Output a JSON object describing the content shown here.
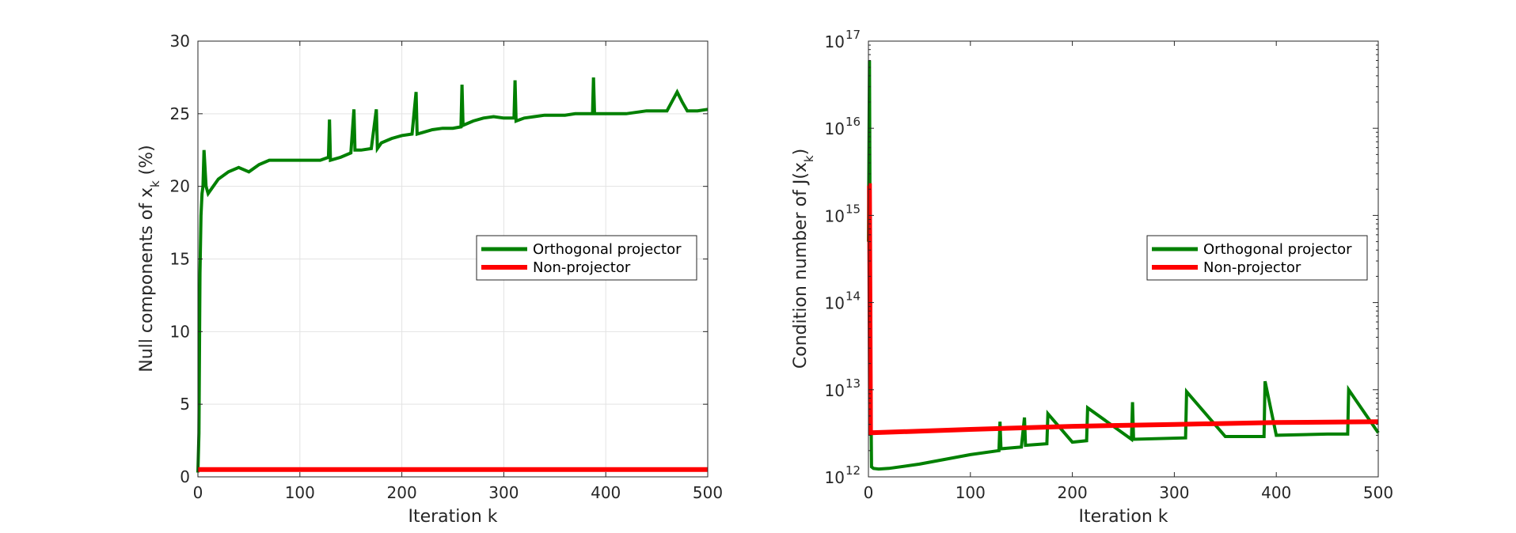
{
  "chart_data": [
    {
      "type": "line",
      "xlabel": "Iteration k",
      "ylabel_main": "Null components of x",
      "ylabel_sub": "k",
      "ylabel_tail": " (%)",
      "xlim": [
        0,
        500
      ],
      "ylim": [
        0,
        30
      ],
      "xticks": [
        "0",
        "100",
        "200",
        "300",
        "400",
        "500"
      ],
      "yticks": [
        "0",
        "5",
        "10",
        "15",
        "20",
        "25",
        "30"
      ],
      "grid": true,
      "legend_position": "right",
      "series": [
        {
          "name": "Orthogonal projector",
          "color": "#008000",
          "x": [
            0,
            1,
            2,
            3,
            4,
            5,
            6,
            8,
            10,
            15,
            20,
            30,
            40,
            50,
            60,
            70,
            80,
            90,
            100,
            110,
            120,
            128,
            129,
            130,
            140,
            150,
            153,
            154,
            160,
            170,
            175,
            176,
            180,
            190,
            200,
            210,
            214,
            215,
            220,
            230,
            240,
            250,
            258,
            259,
            260,
            270,
            280,
            290,
            300,
            310,
            311,
            312,
            320,
            330,
            340,
            350,
            360,
            370,
            380,
            387,
            388,
            389,
            400,
            420,
            440,
            460,
            470,
            475,
            480,
            490,
            500
          ],
          "values": [
            0.3,
            3,
            14,
            18,
            19.5,
            20,
            22.5,
            20,
            19.5,
            20,
            20.5,
            21,
            21.3,
            21,
            21.5,
            21.8,
            21.8,
            21.8,
            21.8,
            21.8,
            21.8,
            22,
            24.6,
            21.8,
            22,
            22.3,
            25.3,
            22.5,
            22.5,
            22.6,
            25.3,
            22.6,
            23,
            23.3,
            23.5,
            23.6,
            26.5,
            23.6,
            23.7,
            23.9,
            24,
            24,
            24.1,
            27,
            24.2,
            24.5,
            24.7,
            24.8,
            24.7,
            24.7,
            27.3,
            24.5,
            24.7,
            24.8,
            24.9,
            24.9,
            24.9,
            25,
            25,
            25,
            27.5,
            25,
            25,
            25,
            25.2,
            25.2,
            26.5,
            25.8,
            25.2,
            25.2,
            25.3
          ]
        },
        {
          "name": "Non-projector",
          "color": "#ff0000",
          "x": [
            0,
            500
          ],
          "values": [
            0.5,
            0.5
          ]
        }
      ]
    },
    {
      "type": "line",
      "y_scale": "log",
      "xlabel": "Iteration k",
      "ylabel_main": "Condition number of J(x",
      "ylabel_sub": "k",
      "ylabel_tail": ")",
      "xlim": [
        0,
        500
      ],
      "ylim": [
        1000000000000.0,
        1e+17
      ],
      "xticks": [
        "0",
        "100",
        "200",
        "300",
        "400",
        "500"
      ],
      "ytick_exponents": [
        "12",
        "13",
        "14",
        "15",
        "16",
        "17"
      ],
      "ytick_base": "10",
      "grid": false,
      "legend_position": "right",
      "series": [
        {
          "name": "Orthogonal projector",
          "color": "#008000",
          "x": [
            0,
            1,
            2,
            3,
            5,
            10,
            20,
            50,
            100,
            128,
            129,
            130,
            150,
            153,
            154,
            175,
            176,
            200,
            214,
            215,
            258,
            259,
            260,
            311,
            312,
            350,
            388,
            389,
            400,
            450,
            470,
            471,
            500
          ],
          "values": [
            500000000000000.0,
            6e+16,
            30000000000000.0,
            1300000000000.0,
            1250000000000.0,
            1230000000000.0,
            1250000000000.0,
            1400000000000.0,
            1800000000000.0,
            2000000000000.0,
            4300000000000.0,
            2100000000000.0,
            2200000000000.0,
            4800000000000.0,
            2300000000000.0,
            2400000000000.0,
            5300000000000.0,
            2500000000000.0,
            2600000000000.0,
            6200000000000.0,
            2700000000000.0,
            7200000000000.0,
            2700000000000.0,
            2800000000000.0,
            9500000000000.0,
            2900000000000.0,
            2900000000000.0,
            12500000000000.0,
            3000000000000.0,
            3100000000000.0,
            3100000000000.0,
            10000000000000.0,
            3200000000000.0
          ]
        },
        {
          "name": "Non-projector",
          "color": "#ff0000",
          "x": [
            0,
            1,
            2,
            100,
            200,
            300,
            400,
            500
          ],
          "values": [
            2200000000000000.0,
            2200000000000000.0,
            3200000000000.0,
            3500000000000.0,
            3800000000000.0,
            4000000000000.0,
            4200000000000.0,
            4300000000000.0
          ]
        }
      ]
    }
  ]
}
